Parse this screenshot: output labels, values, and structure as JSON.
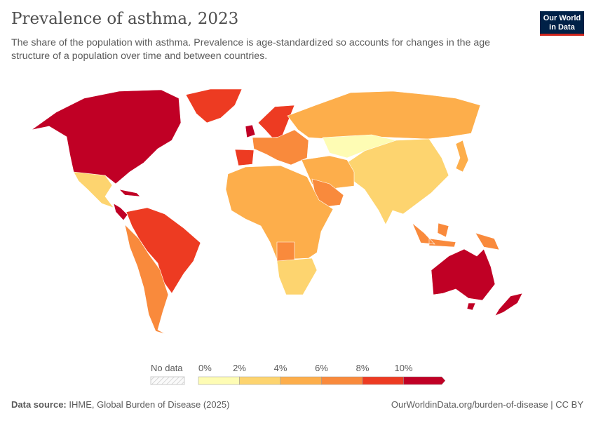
{
  "header": {
    "title": "Prevalence of asthma, 2023",
    "subtitle": "The share of the population with asthma. Prevalence is age-standardized so accounts for changes in the age structure of a population over time and between countries.",
    "logo": "Our World in Data"
  },
  "chart_data": {
    "type": "map",
    "title": "Prevalence of asthma, 2023",
    "legend": {
      "no_data_label": "No data",
      "tick_labels": [
        "0%",
        "2%",
        "4%",
        "6%",
        "8%",
        "10%"
      ],
      "bins": [
        {
          "min": 0,
          "max": 2,
          "color": "#fefcb4"
        },
        {
          "min": 2,
          "max": 4,
          "color": "#fdd46f"
        },
        {
          "min": 4,
          "max": 6,
          "color": "#fdae4b"
        },
        {
          "min": 6,
          "max": 8,
          "color": "#f98a3c"
        },
        {
          "min": 8,
          "max": 10,
          "color": "#ed3b22"
        },
        {
          "min": 10,
          "max": null,
          "color": "#c00025"
        }
      ],
      "placement": "bottom-center"
    },
    "regions": [
      {
        "name": "Canada & United States",
        "bin": "10%+"
      },
      {
        "name": "Greenland",
        "bin": "8-10%"
      },
      {
        "name": "Mexico",
        "bin": "2-4%"
      },
      {
        "name": "Central America & Caribbean",
        "bin": "10%+"
      },
      {
        "name": "Northern South America & Brazil",
        "bin": "8-10%"
      },
      {
        "name": "Rest of South America",
        "bin": "6-8%"
      },
      {
        "name": "United Kingdom",
        "bin": "10%+"
      },
      {
        "name": "Scandinavia",
        "bin": "8-10%"
      },
      {
        "name": "Spain",
        "bin": "8-10%"
      },
      {
        "name": "Continental Europe",
        "bin": "6-8%"
      },
      {
        "name": "Russia",
        "bin": "4-6%"
      },
      {
        "name": "Central Asia & Mongolia",
        "bin": "0-2%"
      },
      {
        "name": "China & South Asia",
        "bin": "2-4%"
      },
      {
        "name": "Middle East",
        "bin": "4-6%"
      },
      {
        "name": "Saudi Arabia",
        "bin": "6-8%"
      },
      {
        "name": "Africa",
        "bin": "4-6%"
      },
      {
        "name": "Angola",
        "bin": "6-8%"
      },
      {
        "name": "Southern Africa",
        "bin": "2-4%"
      },
      {
        "name": "Japan",
        "bin": "4-6%"
      },
      {
        "name": "Indonesia & Papua New Guinea",
        "bin": "6-8%"
      },
      {
        "name": "Australia & New Zealand",
        "bin": "10%+"
      }
    ]
  },
  "footer": {
    "source_label": "Data source:",
    "source": "IHME, Global Burden of Disease (2025)",
    "link": "OurWorldinData.org/burden-of-disease | CC BY"
  }
}
